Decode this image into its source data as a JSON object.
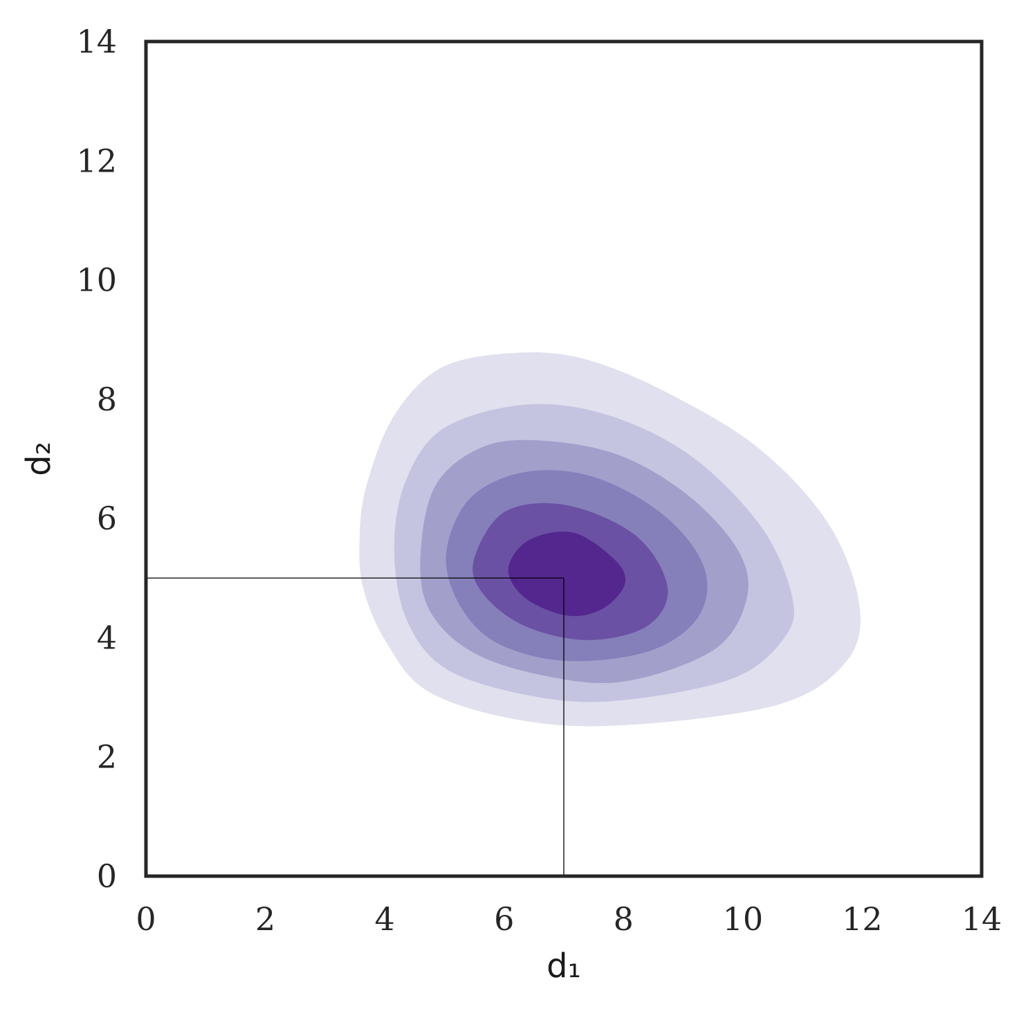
{
  "chart_data": {
    "type": "contour",
    "x_label": "d₁",
    "y_label": "d₂",
    "xlim": [
      0,
      14
    ],
    "ylim": [
      0,
      14
    ],
    "xticks": [
      0,
      2,
      4,
      6,
      8,
      10,
      12,
      14
    ],
    "yticks": [
      0,
      2,
      4,
      6,
      8,
      10,
      12,
      14
    ],
    "levels": [
      {
        "color": "#e0e0ee",
        "x": [
          3.58,
          3.7,
          4.16,
          4.97,
          6.25,
          7.4,
          8.79,
          10.3,
          11.46,
          11.96,
          11.69,
          10.53,
          7.98,
          6.25,
          4.74,
          4.04,
          3.64
        ],
        "y": [
          5.7,
          6.57,
          7.73,
          8.54,
          8.78,
          8.66,
          8.08,
          7.15,
          5.87,
          4.48,
          3.55,
          2.86,
          2.53,
          2.62,
          3.09,
          3.9,
          4.83
        ]
      },
      {
        "color": "#c4c4e0",
        "x": [
          4.16,
          4.33,
          4.97,
          6.36,
          7.75,
          9.14,
          10.3,
          10.82,
          10.71,
          9.84,
          7.98,
          6.59,
          5.09,
          4.39
        ],
        "y": [
          5.41,
          6.57,
          7.5,
          7.91,
          7.73,
          7.04,
          5.87,
          4.71,
          4.02,
          3.32,
          2.95,
          3.0,
          3.44,
          4.25
        ]
      },
      {
        "color": "#a39fcb",
        "x": [
          4.6,
          4.86,
          5.67,
          6.71,
          7.98,
          9.14,
          9.95,
          10.05,
          9.49,
          7.98,
          6.59,
          5.43,
          4.74
        ],
        "y": [
          5.41,
          6.57,
          7.21,
          7.3,
          7.04,
          6.34,
          5.41,
          4.6,
          3.78,
          3.26,
          3.38,
          3.78,
          4.48
        ]
      },
      {
        "color": "#857fba",
        "x": [
          5.03,
          5.43,
          6.36,
          7.52,
          8.68,
          9.35,
          9.26,
          8.45,
          7.06,
          5.9,
          5.26
        ],
        "y": [
          5.41,
          6.34,
          6.78,
          6.69,
          6.05,
          5.18,
          4.36,
          3.78,
          3.61,
          3.9,
          4.54
        ]
      },
      {
        "color": "#6a51a3",
        "x": [
          5.49,
          6.01,
          7.06,
          8.22,
          8.74,
          8.39,
          7.4,
          6.36,
          5.67
        ],
        "y": [
          5.29,
          6.11,
          6.22,
          5.7,
          4.83,
          4.19,
          3.96,
          4.19,
          4.71
        ]
      },
      {
        "color": "#54278f",
        "x": [
          6.07,
          6.42,
          7.17,
          7.87,
          8.02,
          7.64,
          7.06,
          6.36
        ],
        "y": [
          5.15,
          5.64,
          5.76,
          5.29,
          4.89,
          4.48,
          4.37,
          4.66
        ]
      }
    ],
    "crosshair": {
      "x": 7,
      "y": 5
    }
  }
}
